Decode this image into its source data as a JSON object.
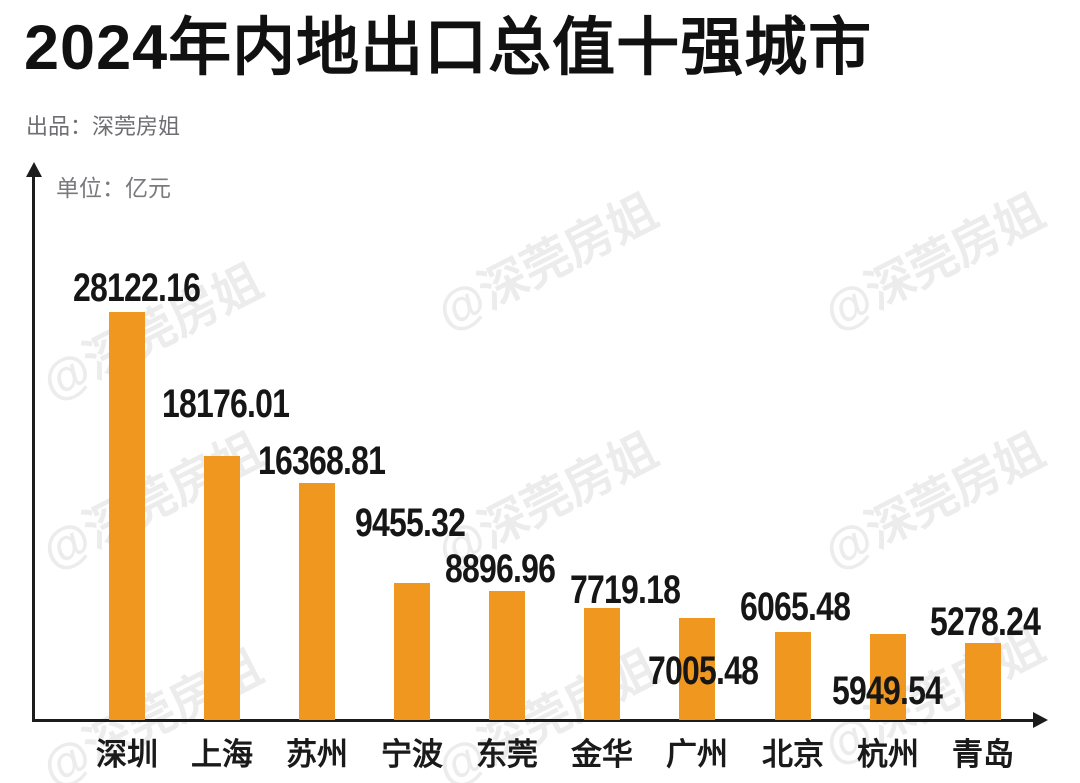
{
  "title": "2024年内地出口总值十强城市",
  "subtitle": "出品：深莞房姐",
  "unit_label": "单位：亿元",
  "watermark": {
    "text": "@深莞房姐"
  },
  "colors": {
    "bar": "#f0971f",
    "title_text": "#111111",
    "subtitle_text": "#6e6e73",
    "unit_text": "#7a7a7e",
    "axis": "#1c1c1c",
    "value_label_text": "#161616",
    "watermark_text": "#ececec",
    "background": "#ffffff"
  },
  "chart_data": {
    "type": "bar",
    "title": "2024年内地出口总值十强城市",
    "unit": "亿元",
    "categories": [
      "深圳",
      "上海",
      "苏州",
      "宁波",
      "东莞",
      "金华",
      "广州",
      "北京",
      "杭州",
      "青岛"
    ],
    "values": [
      28122.16,
      18176.01,
      16368.81,
      9455.32,
      8896.96,
      7719.18,
      7005.48,
      6065.48,
      5949.54,
      5278.24
    ],
    "value_labels": [
      "28122.16",
      "18176.01",
      "16368.81",
      "9455.32",
      "8896.96",
      "7719.18",
      "7005.48",
      "6065.48",
      "5949.54",
      "5278.24"
    ],
    "xlabel": "",
    "ylabel": "单位：亿元",
    "ylim": [
      0,
      28800
    ],
    "grid": false,
    "legend": false
  }
}
